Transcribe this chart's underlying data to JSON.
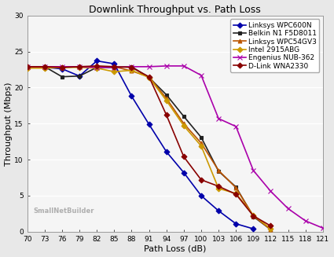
{
  "title": "Downlink Throughput vs. Path Loss",
  "xlabel": "Path Loss (dB)",
  "ylabel": "Throughput (Mbps)",
  "xlim": [
    70,
    121
  ],
  "ylim": [
    0,
    30
  ],
  "xticks": [
    70,
    73,
    76,
    79,
    82,
    85,
    88,
    91,
    94,
    97,
    100,
    103,
    106,
    109,
    112,
    115,
    118,
    121
  ],
  "yticks": [
    0,
    5,
    10,
    15,
    20,
    25,
    30
  ],
  "series": [
    {
      "label": "Linksys WPC600N",
      "color": "#0000aa",
      "marker": "D",
      "markersize": 3.5,
      "linewidth": 1.2,
      "x": [
        70,
        73,
        76,
        79,
        82,
        85,
        88,
        91,
        94,
        97,
        100,
        103,
        106,
        109
      ],
      "y": [
        22.8,
        22.8,
        22.6,
        21.6,
        23.7,
        23.3,
        18.8,
        14.9,
        11.1,
        8.2,
        5.0,
        2.9,
        1.1,
        0.4
      ]
    },
    {
      "label": "Belkin N1 F5D8011",
      "color": "#222222",
      "marker": "s",
      "markersize": 3.5,
      "linewidth": 1.2,
      "x": [
        70,
        73,
        76,
        79,
        82,
        85,
        88,
        91,
        94,
        97,
        100,
        103,
        106,
        109,
        112
      ],
      "y": [
        22.9,
        22.9,
        21.5,
        21.6,
        22.8,
        22.8,
        22.9,
        21.4,
        19.0,
        16.0,
        13.1,
        8.4,
        6.2,
        2.1,
        0.3
      ]
    },
    {
      "label": "Linksys WPC54GV3",
      "color": "#bb5500",
      "marker": "^",
      "markersize": 3.5,
      "linewidth": 1.2,
      "x": [
        70,
        73,
        76,
        79,
        82,
        85,
        88,
        91,
        94,
        97,
        100,
        103,
        106,
        109,
        112
      ],
      "y": [
        22.8,
        22.8,
        22.8,
        22.9,
        22.8,
        22.9,
        22.3,
        21.5,
        18.5,
        15.0,
        12.3,
        8.5,
        6.1,
        2.2,
        0.3
      ]
    },
    {
      "label": "Intel 2915ABG",
      "color": "#cc9900",
      "marker": "D",
      "markersize": 3.5,
      "linewidth": 1.2,
      "x": [
        70,
        73,
        76,
        79,
        82,
        85,
        88,
        91,
        94,
        97,
        100,
        103,
        106,
        109,
        112
      ],
      "y": [
        22.7,
        22.7,
        22.8,
        22.8,
        22.7,
        22.2,
        22.4,
        21.4,
        18.2,
        14.7,
        11.9,
        6.0,
        5.3,
        2.3,
        0.4
      ]
    },
    {
      "label": "Engenius NUB-362",
      "color": "#aa00aa",
      "marker": "x",
      "markersize": 4.5,
      "linewidth": 1.2,
      "x": [
        70,
        73,
        76,
        79,
        82,
        85,
        88,
        91,
        94,
        97,
        100,
        103,
        106,
        109,
        112,
        115,
        118,
        121
      ],
      "y": [
        22.9,
        22.9,
        22.9,
        22.9,
        22.8,
        22.8,
        22.9,
        22.9,
        23.0,
        23.0,
        21.7,
        15.7,
        14.6,
        8.5,
        5.6,
        3.2,
        1.5,
        0.5
      ]
    },
    {
      "label": "D-Link WNA2330",
      "color": "#880000",
      "marker": "D",
      "markersize": 3.5,
      "linewidth": 1.2,
      "x": [
        70,
        73,
        76,
        79,
        82,
        85,
        88,
        91,
        94,
        97,
        100,
        103,
        106,
        109,
        112
      ],
      "y": [
        22.9,
        22.9,
        22.8,
        22.9,
        23.0,
        22.9,
        22.8,
        21.5,
        16.2,
        10.4,
        7.2,
        6.3,
        5.2,
        2.2,
        0.8
      ]
    }
  ],
  "bg_color": "#e8e8e8",
  "plot_bg_color": "#f5f5f5",
  "grid_color": "#ffffff",
  "legend_fontsize": 6.5,
  "title_fontsize": 9,
  "axis_label_fontsize": 8,
  "tick_fontsize": 6.5
}
